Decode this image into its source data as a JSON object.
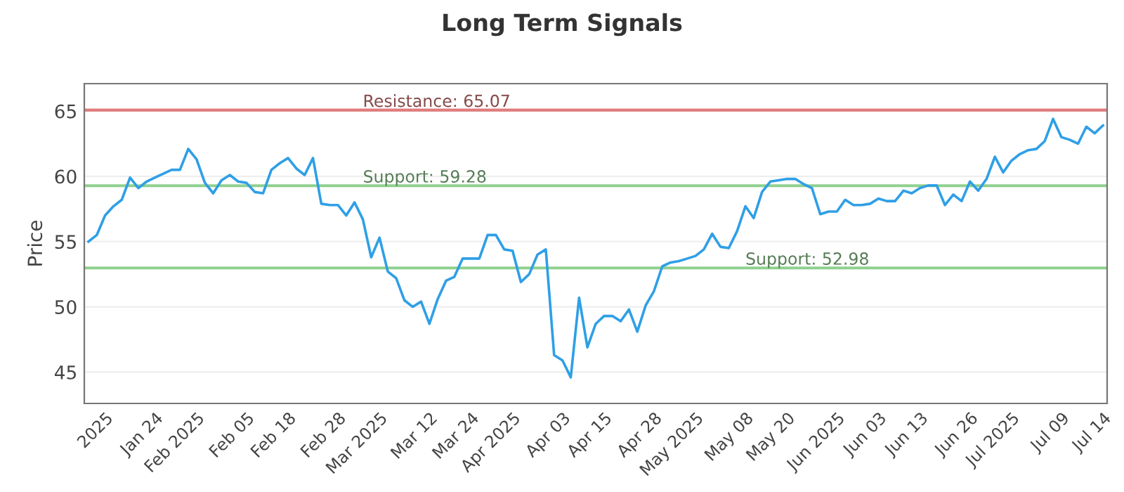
{
  "chart_data": {
    "type": "line",
    "title": "Long Term Signals",
    "ylabel": "Price",
    "categories": [
      null,
      null,
      "2025",
      null,
      null,
      null,
      null,
      null,
      "Jan 24",
      null,
      null,
      null,
      null,
      "Feb 2025",
      null,
      null,
      null,
      null,
      null,
      "Feb 05",
      null,
      null,
      null,
      null,
      "Feb 18",
      null,
      null,
      null,
      null,
      null,
      "Feb 28",
      null,
      null,
      null,
      null,
      "Mar 2025",
      null,
      null,
      null,
      null,
      null,
      "Mar 12",
      null,
      null,
      null,
      null,
      "Mar 24",
      null,
      null,
      null,
      null,
      "Apr 2025",
      null,
      null,
      null,
      null,
      null,
      "Apr 03",
      null,
      null,
      null,
      null,
      "Apr 15",
      null,
      null,
      null,
      null,
      null,
      "Apr 28",
      null,
      null,
      null,
      null,
      "May 2025",
      null,
      null,
      null,
      null,
      null,
      "May 08",
      null,
      null,
      null,
      null,
      "May 20",
      null,
      null,
      null,
      null,
      null,
      "Jun 2025",
      null,
      null,
      null,
      null,
      "Jun 03",
      null,
      null,
      null,
      null,
      "Jun 13",
      null,
      null,
      null,
      null,
      null,
      "Jun 26",
      null,
      null,
      null,
      null,
      "Jul 2025",
      null,
      null,
      null,
      null,
      null,
      "Jul 09",
      null,
      null,
      null,
      null,
      "Jul 14"
    ],
    "series": [
      {
        "color": "#2f9fe6",
        "values": [
          55.0,
          55.5,
          57.0,
          57.7,
          58.2,
          59.9,
          59.1,
          59.6,
          59.9,
          60.2,
          60.5,
          60.5,
          62.1,
          61.3,
          59.5,
          58.7,
          59.7,
          60.1,
          59.6,
          59.5,
          58.8,
          58.7,
          60.5,
          61.0,
          61.4,
          60.6,
          60.1,
          61.4,
          57.9,
          57.8,
          57.8,
          57.0,
          58.0,
          56.7,
          53.8,
          55.3,
          52.7,
          52.2,
          50.5,
          50.0,
          50.4,
          48.7,
          50.6,
          52.0,
          52.3,
          53.7,
          53.7,
          53.7,
          55.5,
          55.5,
          54.4,
          54.3,
          51.9,
          52.5,
          54.0,
          54.4,
          46.3,
          45.9,
          44.6,
          50.7,
          46.9,
          48.7,
          49.3,
          49.3,
          48.9,
          49.8,
          48.1,
          50.1,
          51.2,
          53.1,
          53.4,
          53.5,
          53.7,
          53.9,
          54.4,
          55.6,
          54.6,
          54.5,
          55.8,
          57.7,
          56.8,
          58.8,
          59.6,
          59.7,
          59.8,
          59.8,
          59.4,
          59.1,
          57.1,
          57.3,
          57.3,
          58.2,
          57.8,
          57.8,
          57.9,
          58.3,
          58.1,
          58.1,
          58.9,
          58.7,
          59.1,
          59.3,
          59.3,
          57.8,
          58.6,
          58.1,
          59.6,
          58.9,
          59.8,
          61.5,
          60.3,
          61.2,
          61.7,
          62.0,
          62.1,
          62.7,
          64.4,
          63.0,
          62.8,
          62.5,
          63.8,
          63.3,
          63.9
        ]
      }
    ],
    "ylim": [
      42.6,
      67.1
    ],
    "yticks": [
      45,
      50,
      55,
      60,
      65
    ],
    "grid": "y",
    "ref_lines": [
      {
        "axis": "y",
        "value": 65.07,
        "label": "Resistance: 65.07",
        "color": "#e07b7b"
      },
      {
        "axis": "y",
        "value": 59.28,
        "label": "Support: 59.28",
        "color": "#8fd08f"
      },
      {
        "axis": "y",
        "value": 52.98,
        "label": "Support: 52.98",
        "color": "#8fd08f"
      }
    ]
  }
}
